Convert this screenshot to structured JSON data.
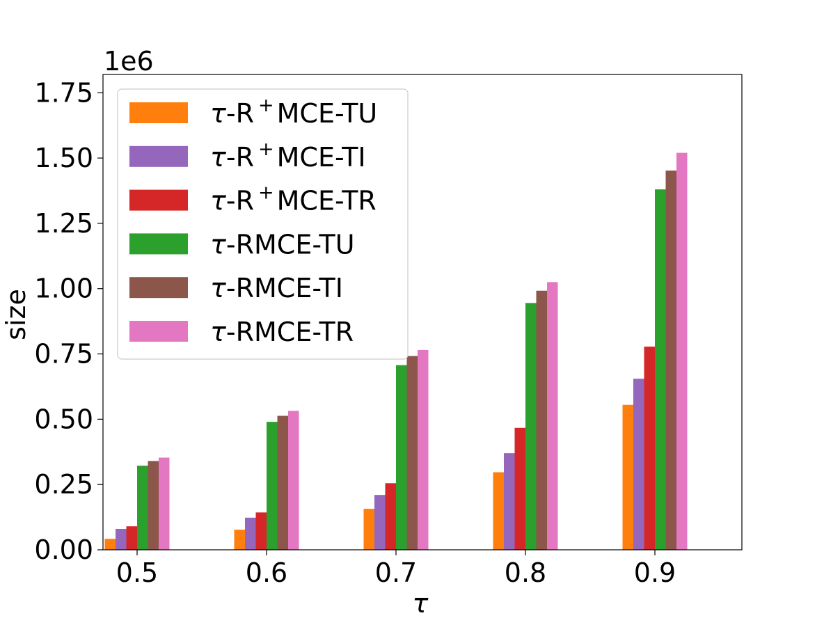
{
  "chart_data": {
    "type": "bar",
    "categories": [
      "0.5",
      "0.6",
      "0.7",
      "0.8",
      "0.9"
    ],
    "series": [
      {
        "name": "τ-R⁺MCE-TU",
        "name_parts": [
          "τ",
          "-R",
          "+",
          "MCE-TU"
        ],
        "color": "#ff7f0e",
        "values": [
          42000,
          77000,
          157000,
          297000,
          555000
        ]
      },
      {
        "name": "τ-R⁺MCE-TI",
        "name_parts": [
          "τ",
          "-R",
          "+",
          "MCE-TI"
        ],
        "color": "#9467bd",
        "values": [
          80000,
          123000,
          210000,
          370000,
          655000
        ]
      },
      {
        "name": "τ-R⁺MCE-TR",
        "name_parts": [
          "τ",
          "-R",
          "+",
          "MCE-TR"
        ],
        "color": "#d62728",
        "values": [
          90000,
          143000,
          255000,
          467000,
          778000
        ]
      },
      {
        "name": "τ-RMCE-TU",
        "name_parts": [
          "τ",
          "-RMCE-TU",
          "",
          ""
        ],
        "color": "#2ca02c",
        "values": [
          322000,
          490000,
          707000,
          945000,
          1380000
        ]
      },
      {
        "name": "τ-RMCE-TI",
        "name_parts": [
          "τ",
          "-RMCE-TI",
          "",
          ""
        ],
        "color": "#8c564b",
        "values": [
          340000,
          513000,
          742000,
          992000,
          1452000
        ]
      },
      {
        "name": "τ-RMCE-TR",
        "name_parts": [
          "τ",
          "-RMCE-TR",
          "",
          ""
        ],
        "color": "#e377c2",
        "values": [
          353000,
          532000,
          765000,
          1025000,
          1520000
        ]
      }
    ],
    "xlabel": "τ",
    "ylabel": "size",
    "offset_label": "1e6",
    "yticks": [
      "0.00",
      "0.25",
      "0.50",
      "0.75",
      "1.00",
      "1.25",
      "1.50",
      "1.75"
    ],
    "ytick_values": [
      0,
      250000,
      500000,
      750000,
      1000000,
      1250000,
      1500000,
      1750000
    ],
    "ylim": [
      0,
      1820000
    ],
    "grid": false,
    "legend_position": "upper-left"
  }
}
